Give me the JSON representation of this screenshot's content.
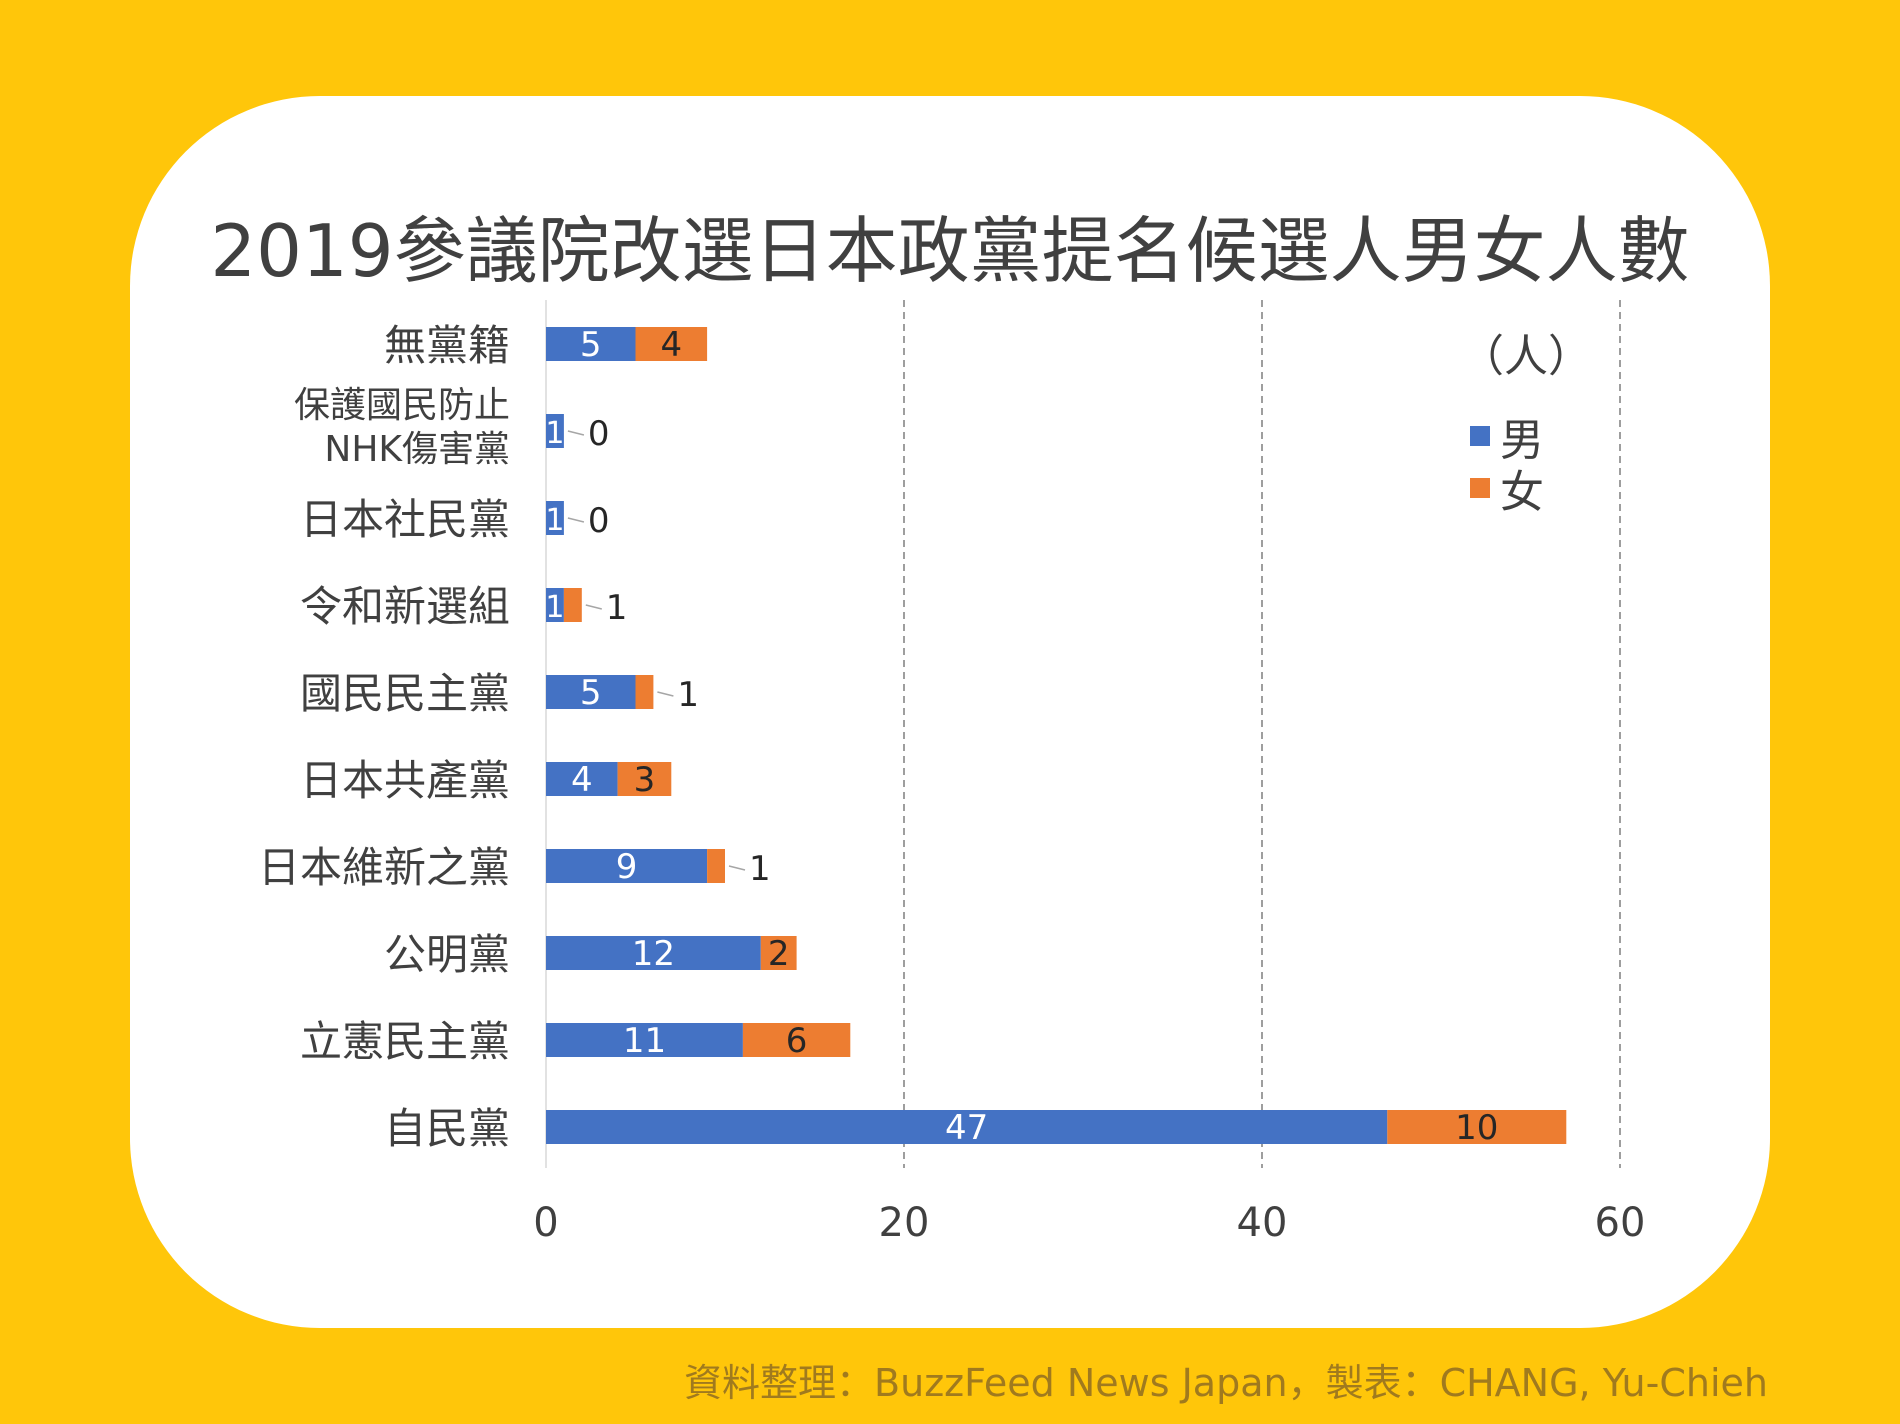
{
  "chart_data": {
    "type": "bar",
    "orientation": "horizontal",
    "stacked": true,
    "title": "2019參議院改選日本政黨提名候選人男女人數",
    "unit_label": "（人）",
    "categories": [
      "無黨籍",
      "保護國民防止\nNHK傷害黨",
      "日本社民黨",
      "令和新選組",
      "國民民主黨",
      "日本共產黨",
      "日本維新之黨",
      "公明黨",
      "立憲民主黨",
      "自民黨"
    ],
    "series": [
      {
        "name": "男",
        "color": "#4472C4",
        "values": [
          5,
          1,
          1,
          1,
          5,
          4,
          9,
          12,
          11,
          47
        ]
      },
      {
        "name": "女",
        "color": "#ED7D31",
        "values": [
          4,
          0,
          0,
          1,
          1,
          3,
          1,
          2,
          6,
          10
        ]
      }
    ],
    "xlim": [
      0,
      60
    ],
    "xticks": [
      0,
      20,
      40,
      60
    ],
    "grid": true,
    "legend_position": "top-right"
  },
  "footer": {
    "credit": "資料整理：BuzzFeed News Japan，製表：CHANG, Yu-Chieh"
  },
  "colors": {
    "background": "#FFC60A",
    "card": "#FFFFFF",
    "text": "#404040"
  }
}
